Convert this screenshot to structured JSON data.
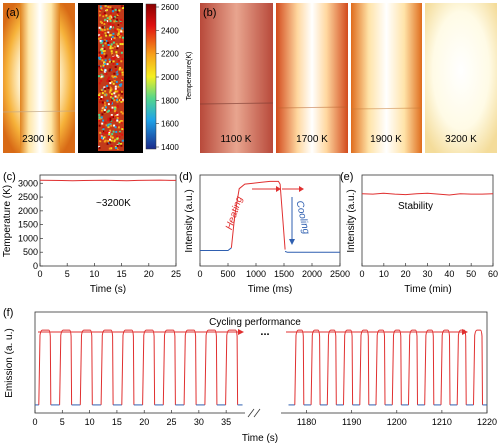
{
  "panels": {
    "a": {
      "label": "(a)",
      "photo_temp": "2300 K",
      "colorbar": {
        "label": "Temperature(K)",
        "ticks": [
          "2600",
          "2400",
          "2200",
          "2000",
          "1800",
          "1600",
          "1400"
        ]
      }
    },
    "b": {
      "label": "(b)",
      "temps": [
        "1100 K",
        "1700 K",
        "1900 K",
        "3200 K"
      ]
    },
    "c": {
      "label": "(c)",
      "annotation": "~3200K"
    },
    "d": {
      "label": "(d)",
      "heating": "Heating",
      "cooling": "Cooling"
    },
    "e": {
      "label": "(e)",
      "annotation": "Stability"
    },
    "f": {
      "label": "(f)",
      "annotation": "Cycling performance",
      "break_mark": "..."
    }
  },
  "colors": {
    "red": "#e03030",
    "blue": "#2f5fb0",
    "axis": "#333333"
  },
  "chart_data": [
    {
      "id": "c",
      "type": "line",
      "xlabel": "Time (s)",
      "ylabel": "Temperature (K)",
      "xlim": [
        0,
        25
      ],
      "ylim": [
        0,
        3300
      ],
      "xticks": [
        0,
        5,
        10,
        15,
        20,
        25
      ],
      "yticks": [
        0,
        500,
        1000,
        1500,
        2000,
        2500,
        3000
      ],
      "series": [
        {
          "x": [
            0,
            2,
            4,
            6,
            8,
            10,
            12,
            14,
            16,
            18,
            20,
            22,
            24,
            25
          ],
          "y": [
            3110,
            3105,
            3100,
            3095,
            3100,
            3105,
            3110,
            3100,
            3095,
            3105,
            3110,
            3115,
            3105,
            3105
          ]
        }
      ]
    },
    {
      "id": "d",
      "type": "line",
      "xlabel": "Time (ms)",
      "ylabel": "Intensity (a.u.)",
      "xlim": [
        0,
        2500
      ],
      "ylim": [
        0,
        1
      ],
      "xticks": [
        0,
        500,
        1000,
        1500,
        2000,
        2500
      ],
      "series": [
        {
          "x": [
            0,
            500,
            560
          ],
          "y": [
            0.17,
            0.17,
            0.2
          ]
        },
        {
          "x": [
            560,
            620,
            700,
            800,
            950,
            1100,
            1250,
            1400,
            1430,
            1480,
            1520
          ],
          "y": [
            0.2,
            0.55,
            0.85,
            0.9,
            0.91,
            0.92,
            0.93,
            0.93,
            0.9,
            0.5,
            0.18
          ]
        },
        {
          "x": [
            1520,
            1560,
            2000,
            2500
          ],
          "y": [
            0.16,
            0.15,
            0.15,
            0.15
          ]
        }
      ]
    },
    {
      "id": "e",
      "type": "line",
      "xlabel": "Time (min)",
      "ylabel": "Intensity (a.u.)",
      "xlim": [
        0,
        60
      ],
      "ylim": [
        0,
        1
      ],
      "xticks": [
        0,
        10,
        20,
        30,
        40,
        50,
        60
      ],
      "series": [
        {
          "x": [
            0,
            5,
            10,
            15,
            20,
            25,
            30,
            35,
            40,
            45,
            50,
            55,
            60
          ],
          "y": [
            0.795,
            0.79,
            0.8,
            0.79,
            0.785,
            0.795,
            0.8,
            0.79,
            0.78,
            0.795,
            0.79,
            0.79,
            0.795
          ]
        }
      ]
    },
    {
      "id": "f",
      "type": "line",
      "xlabel": "Time (s)",
      "ylabel": "Emission (a. u.)",
      "xlim_left": [
        0,
        39
      ],
      "xlim_right": [
        1175,
        1220
      ],
      "xticks_left": [
        0,
        5,
        10,
        15,
        20,
        25,
        30,
        35
      ],
      "xticks_right": [
        1180,
        1190,
        1200,
        1210,
        1220
      ],
      "ylim": [
        0,
        1
      ],
      "pulses_left_start": [
        0.7,
        4.5,
        8.3,
        12.1,
        15.9,
        19.7,
        23.5,
        27.3,
        31.1,
        34.9
      ],
      "pulses_right_start": [
        1177.4,
        1181.0,
        1184.6,
        1188.2,
        1191.8,
        1195.4,
        1199.0,
        1202.6,
        1206.2,
        1209.8,
        1213.4,
        1217.0
      ],
      "pulse_width_left": 2.2,
      "pulse_width_right": 2.0,
      "high": 0.82,
      "low": 0.08
    }
  ]
}
